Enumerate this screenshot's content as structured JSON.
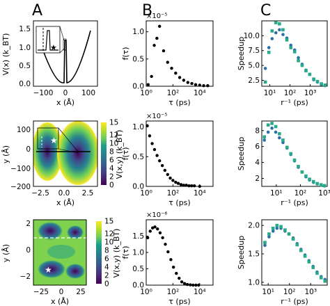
{
  "panel_letters": [
    "A",
    "B",
    "C"
  ],
  "colors": {
    "dots_B": "#000000",
    "speedup_blue": "#2b6fa8",
    "speedup_green": "#27a98a",
    "viridis": [
      "#440154",
      "#482777",
      "#3f4a8a",
      "#31678e",
      "#26838f",
      "#1f9d8a",
      "#6cce5a",
      "#b6de2b",
      "#fee825"
    ]
  },
  "chart_data": [
    {
      "id": "A1",
      "type": "line",
      "xlabel": "x (Å)",
      "ylabel": "V(x) (k_BT)",
      "xlim": [
        -140,
        140
      ],
      "ylim": [
        -0.1,
        1.5
      ],
      "xticks": [
        "−100",
        "0",
        "100"
      ],
      "yticks": [
        "0.0",
        "0.5",
        "1.0",
        "1.5"
      ],
      "inset_star": "★",
      "notes": "parabolic potential with narrow barrier spike near x=0; inset zoom with dashed line and star"
    },
    {
      "id": "A2",
      "type": "heatmap",
      "xlabel": "x (Å)",
      "ylabel": "y (Å)",
      "xlim": [
        -3.2,
        2.9
      ],
      "ylim": [
        -250,
        130
      ],
      "xticks": [
        "−2.5",
        "0.0",
        "2.5"
      ],
      "yticks": [
        "−200",
        "−100",
        "0",
        "100"
      ],
      "colorbar_label": "V(x,y) (k_BT)",
      "colorbar_ticks": [
        "0",
        "2",
        "4",
        "6",
        "8",
        "10",
        "12",
        "15"
      ],
      "colorbar_range": [
        0,
        15
      ]
    },
    {
      "id": "A3",
      "type": "heatmap",
      "xlabel": "x (Å)",
      "ylabel": "y (Å)",
      "xlim": [
        -32,
        30
      ],
      "ylim": [
        -2.6,
        2.4
      ],
      "xticks": [
        "−25",
        "0",
        "25"
      ],
      "yticks": [
        "−2",
        "0",
        "2"
      ],
      "colorbar_label": "V(x,y) (k_BT)",
      "colorbar_ticks": [
        "0",
        "2",
        "4",
        "6",
        "8",
        "10",
        "12",
        "15"
      ],
      "colorbar_range": [
        0,
        15
      ],
      "star": [
        -12,
        -1.5
      ],
      "dashed_line_y": 1.0
    },
    {
      "id": "B1",
      "type": "scatter",
      "xlabel": "τ (ps)",
      "ylabel": "f(τ)",
      "exponent": "×10⁻⁵",
      "xscale": "log",
      "xlim": [
        1,
        100000
      ],
      "ylim": [
        0,
        1.2
      ],
      "xticks": [
        "10⁰",
        "10²",
        "10⁴"
      ],
      "yticks": [
        "0.0",
        "0.5",
        "1.0"
      ],
      "points": [
        [
          1.4,
          0.03
        ],
        [
          2.5,
          0.18
        ],
        [
          4,
          0.75
        ],
        [
          6.3,
          0.88
        ],
        [
          10,
          1.1
        ],
        [
          20,
          0.65
        ],
        [
          40,
          0.44
        ],
        [
          80,
          0.33
        ],
        [
          160,
          0.24
        ],
        [
          320,
          0.16
        ],
        [
          640,
          0.11
        ],
        [
          1300,
          0.07
        ],
        [
          2600,
          0.05
        ],
        [
          5000,
          0.03
        ],
        [
          10000,
          0.02
        ],
        [
          20000,
          0.01
        ],
        [
          40000,
          0.01
        ]
      ]
    },
    {
      "id": "B2",
      "type": "scatter",
      "xlabel": "τ (ps)",
      "ylabel": "f(τ)",
      "exponent": "×10⁻⁵",
      "xscale": "log",
      "xlim": [
        1,
        100000
      ],
      "ylim": [
        0,
        1.1
      ],
      "xticks": [
        "10⁰",
        "10²",
        "10⁴"
      ],
      "yticks": [
        "0.0",
        "0.5",
        "1.0"
      ],
      "points": [
        [
          1.2,
          1.02
        ],
        [
          1.8,
          0.85
        ],
        [
          2.8,
          0.72
        ],
        [
          4.2,
          0.62
        ],
        [
          6.5,
          0.52
        ],
        [
          10,
          0.43
        ],
        [
          16,
          0.35
        ],
        [
          25,
          0.27
        ],
        [
          40,
          0.2
        ],
        [
          63,
          0.14
        ],
        [
          100,
          0.1
        ],
        [
          160,
          0.07
        ],
        [
          250,
          0.05
        ],
        [
          400,
          0.03
        ],
        [
          630,
          0.02
        ],
        [
          1000,
          0.02
        ],
        [
          1600,
          0.01
        ],
        [
          2500,
          0.01
        ],
        [
          4000,
          0.01
        ],
        [
          10000,
          0.0
        ]
      ]
    },
    {
      "id": "B3",
      "type": "scatter",
      "xlabel": "τ (ps)",
      "ylabel": "f(τ)",
      "exponent": "×10⁻⁶",
      "xscale": "log",
      "xlim": [
        1,
        100000
      ],
      "ylim": [
        0,
        2.0
      ],
      "xticks": [
        "10⁰",
        "10²",
        "10⁴"
      ],
      "yticks": [
        "0.0",
        "0.5",
        "1.0",
        "1.5"
      ],
      "points": [
        [
          1.3,
          1.45
        ],
        [
          2,
          1.65
        ],
        [
          3,
          1.75
        ],
        [
          4.5,
          1.78
        ],
        [
          7,
          1.72
        ],
        [
          11,
          1.6
        ],
        [
          17,
          1.45
        ],
        [
          27,
          1.25
        ],
        [
          43,
          1.02
        ],
        [
          70,
          0.78
        ],
        [
          110,
          0.55
        ],
        [
          180,
          0.36
        ],
        [
          290,
          0.21
        ],
        [
          460,
          0.1
        ],
        [
          740,
          0.05
        ],
        [
          1200,
          0.02
        ],
        [
          2000,
          0.01
        ],
        [
          3200,
          0.0
        ],
        [
          5200,
          0.0
        ],
        [
          8400,
          0.0
        ]
      ]
    },
    {
      "id": "C1",
      "type": "scatter",
      "xlabel": "r⁻¹ (ps)",
      "ylabel": "Speedup",
      "xscale": "log",
      "xlim": [
        4,
        7000
      ],
      "ylim": [
        1.5,
        12.5
      ],
      "xticks": [
        "10¹",
        "10²",
        "10³"
      ],
      "yticks": [
        "2.5",
        "5.0",
        "7.5",
        "10.0"
      ],
      "series": [
        {
          "values": [
            [
              6,
              4.5
            ],
            [
              9,
              8.0
            ],
            [
              13,
              9.5
            ],
            [
              20,
              10.5
            ],
            [
              30,
              11.0
            ],
            [
              45,
              10.2
            ],
            [
              70,
              9.6
            ],
            [
              110,
              8.4
            ],
            [
              170,
              7.6
            ],
            [
              260,
              6.3
            ],
            [
              400,
              5.2
            ],
            [
              620,
              4.2
            ],
            [
              950,
              3.5
            ],
            [
              1500,
              2.6
            ],
            [
              2300,
              2.2
            ],
            [
              3600,
              1.8
            ],
            [
              5500,
              1.6
            ]
          ]
        },
        {
          "values": [
            [
              6,
              2.2
            ],
            [
              9,
              7.2
            ],
            [
              13,
              10.8
            ],
            [
              20,
              12.2
            ],
            [
              30,
              12.0
            ],
            [
              45,
              11.0
            ],
            [
              70,
              9.3
            ],
            [
              110,
              8.0
            ],
            [
              170,
              7.3
            ],
            [
              260,
              5.8
            ],
            [
              400,
              5.0
            ],
            [
              620,
              4.1
            ],
            [
              950,
              3.5
            ],
            [
              1500,
              2.7
            ],
            [
              2300,
              2.3
            ],
            [
              3600,
              1.9
            ],
            [
              5500,
              1.7
            ]
          ]
        }
      ]
    },
    {
      "id": "C2",
      "type": "scatter",
      "xlabel": "r⁻¹ (ps)",
      "ylabel": "Speedup",
      "xscale": "log",
      "xlim": [
        2.5,
        1300
      ],
      "ylim": [
        1.0,
        9.2
      ],
      "xticks": [
        "10¹",
        "10²",
        "10³"
      ],
      "yticks": [
        "2",
        "4",
        "6",
        "8"
      ],
      "series": [
        {
          "values": [
            [
              3.2,
              6.8
            ],
            [
              4.6,
              7.8
            ],
            [
              6.6,
              8.3
            ],
            [
              9.5,
              7.8
            ],
            [
              13.5,
              7.1
            ],
            [
              19,
              6.5
            ],
            [
              28,
              5.8
            ],
            [
              40,
              5.0
            ],
            [
              57,
              4.2
            ],
            [
              82,
              3.4
            ],
            [
              118,
              2.8
            ],
            [
              170,
              2.2
            ],
            [
              240,
              1.8
            ],
            [
              350,
              1.5
            ],
            [
              500,
              1.3
            ],
            [
              720,
              1.15
            ],
            [
              1000,
              1.05
            ]
          ]
        },
        {
          "values": [
            [
              3.2,
              7.2
            ],
            [
              4.6,
              8.7
            ],
            [
              6.6,
              8.9
            ],
            [
              9.5,
              8.5
            ],
            [
              13.5,
              7.6
            ],
            [
              19,
              6.8
            ],
            [
              28,
              5.9
            ],
            [
              40,
              5.1
            ],
            [
              57,
              4.3
            ],
            [
              82,
              3.5
            ],
            [
              118,
              2.8
            ],
            [
              170,
              2.3
            ],
            [
              240,
              1.9
            ],
            [
              350,
              1.6
            ],
            [
              500,
              1.35
            ],
            [
              720,
              1.2
            ],
            [
              1000,
              1.1
            ]
          ]
        }
      ]
    },
    {
      "id": "C3",
      "type": "scatter",
      "xlabel": "r⁻¹ (ps)",
      "ylabel": "Speedup",
      "xscale": "log",
      "xlim": [
        5,
        6000
      ],
      "ylim": [
        0.95,
        2.1
      ],
      "xticks": [
        "10¹",
        "10²",
        "10³"
      ],
      "yticks": [
        "1.0",
        "1.5",
        "2.0"
      ],
      "series": [
        {
          "values": [
            [
              7,
              1.65
            ],
            [
              11,
              1.8
            ],
            [
              17,
              1.9
            ],
            [
              26,
              1.95
            ],
            [
              40,
              1.95
            ],
            [
              62,
              1.9
            ],
            [
              95,
              1.85
            ],
            [
              150,
              1.78
            ],
            [
              230,
              1.68
            ],
            [
              350,
              1.58
            ],
            [
              540,
              1.48
            ],
            [
              830,
              1.38
            ],
            [
              1300,
              1.28
            ],
            [
              2000,
              1.18
            ],
            [
              3100,
              1.1
            ],
            [
              4700,
              1.05
            ]
          ]
        },
        {
          "values": [
            [
              7,
              1.7
            ],
            [
              11,
              1.85
            ],
            [
              17,
              1.95
            ],
            [
              26,
              2.0
            ],
            [
              40,
              1.98
            ],
            [
              62,
              1.92
            ],
            [
              95,
              1.85
            ],
            [
              150,
              1.76
            ],
            [
              230,
              1.66
            ],
            [
              350,
              1.56
            ],
            [
              540,
              1.46
            ],
            [
              830,
              1.36
            ],
            [
              1300,
              1.26
            ],
            [
              2000,
              1.16
            ],
            [
              3100,
              1.08
            ],
            [
              4700,
              1.02
            ]
          ]
        }
      ]
    }
  ]
}
